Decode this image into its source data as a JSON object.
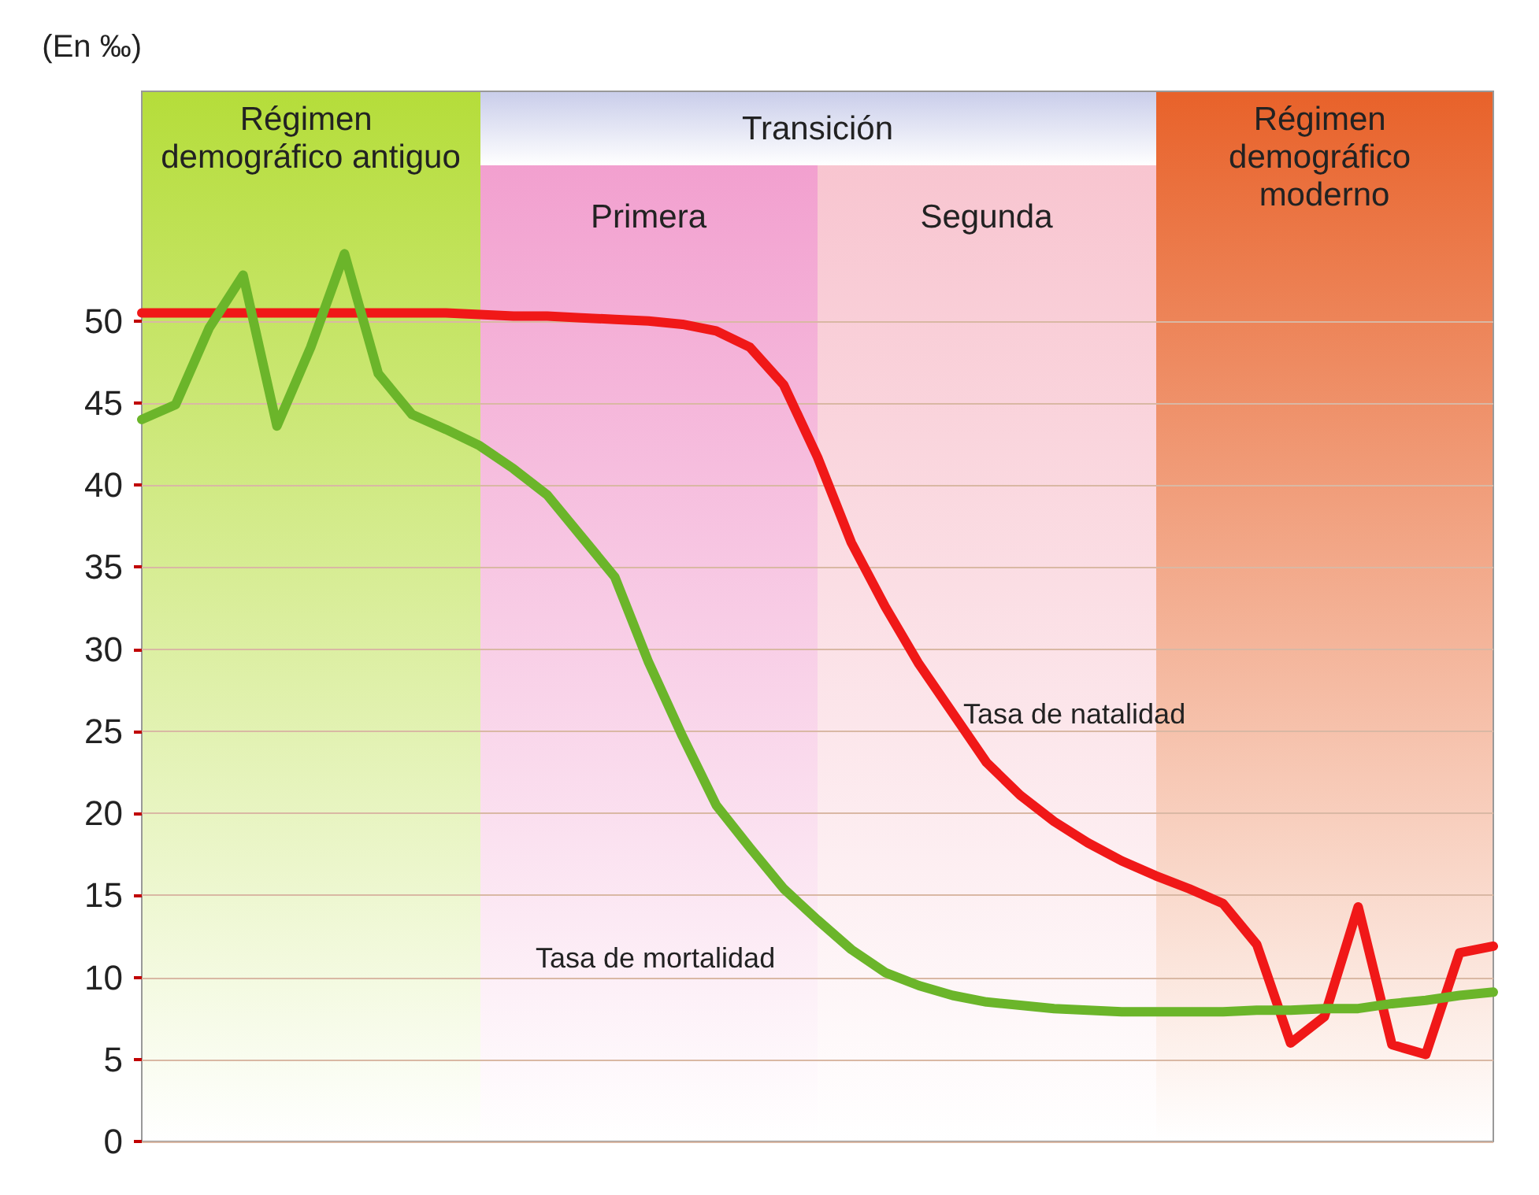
{
  "chart_data": {
    "type": "line",
    "ylabel": "(En ‰)",
    "ylim": [
      0,
      64
    ],
    "yticks": [
      0,
      5,
      10,
      15,
      20,
      25,
      30,
      35,
      40,
      45,
      50
    ],
    "tick_labels": "y",
    "grid": "y",
    "marker": "none",
    "line_style": "solid",
    "categories": [
      null,
      null,
      null,
      null,
      null,
      null,
      null,
      null,
      null,
      null,
      null,
      null,
      null,
      null,
      null,
      null,
      null,
      null,
      null,
      null,
      null,
      null,
      null,
      null,
      null,
      null,
      null,
      null,
      null,
      null,
      null,
      null,
      null,
      null,
      null,
      null,
      null,
      null,
      null,
      null,
      null
    ],
    "series": [
      {
        "color": "#f01818",
        "values": [
          50.5,
          50.5,
          50.5,
          50.5,
          50.5,
          50.5,
          50.5,
          50.5,
          50.5,
          50.5,
          50.4,
          50.3,
          50.3,
          50.2,
          50.1,
          50.0,
          49.8,
          49.4,
          48.4,
          46.1,
          41.7,
          36.5,
          32.6,
          29.1,
          26.1,
          23.1,
          21.1,
          19.5,
          18.2,
          17.1,
          16.2,
          15.4,
          14.5,
          12.0,
          6.0,
          7.6,
          14.3,
          5.9,
          5.3,
          11.5,
          11.9
        ]
      },
      {
        "color": "#6bb52a",
        "values": [
          44.0,
          44.9,
          49.6,
          52.8,
          43.6,
          48.4,
          54.1,
          46.8,
          44.3,
          43.4,
          42.4,
          41.0,
          39.4,
          36.9,
          34.4,
          29.2,
          24.7,
          20.5,
          17.9,
          15.4,
          13.5,
          11.7,
          10.3,
          9.5,
          8.9,
          8.5,
          8.3,
          8.1,
          8.0,
          7.9,
          7.9,
          7.9,
          7.9,
          8.0,
          8.0,
          8.1,
          8.1,
          8.4,
          8.6,
          8.9,
          9.1
        ]
      }
    ],
    "annotations": [
      "Régimen demográfico antiguo",
      "Transición",
      "Primera",
      "Segunda",
      "Régimen demográfico moderno",
      "Tasa de natalidad",
      "Tasa de mortalidad"
    ]
  }
}
